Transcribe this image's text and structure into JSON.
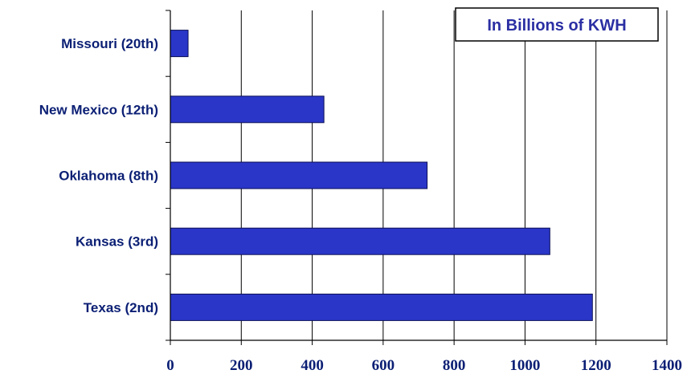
{
  "chart_data": {
    "type": "bar",
    "orientation": "horizontal",
    "title": "In Billions of KWH",
    "categories": [
      "Missouri (20th)",
      "New Mexico (12th)",
      "Oklahoma (8th)",
      "Kansas (3rd)",
      "Texas (2nd)"
    ],
    "values": [
      50,
      433,
      724,
      1070,
      1190
    ],
    "xlim": [
      0,
      1400
    ],
    "xticks": [
      0,
      200,
      400,
      600,
      800,
      1000,
      1200,
      1400
    ],
    "grid": "vertical lines at major ticks",
    "bar_color": "#2a36c8",
    "bar_edge_color": "#0b0f55",
    "text_color": "#0b1f74"
  }
}
